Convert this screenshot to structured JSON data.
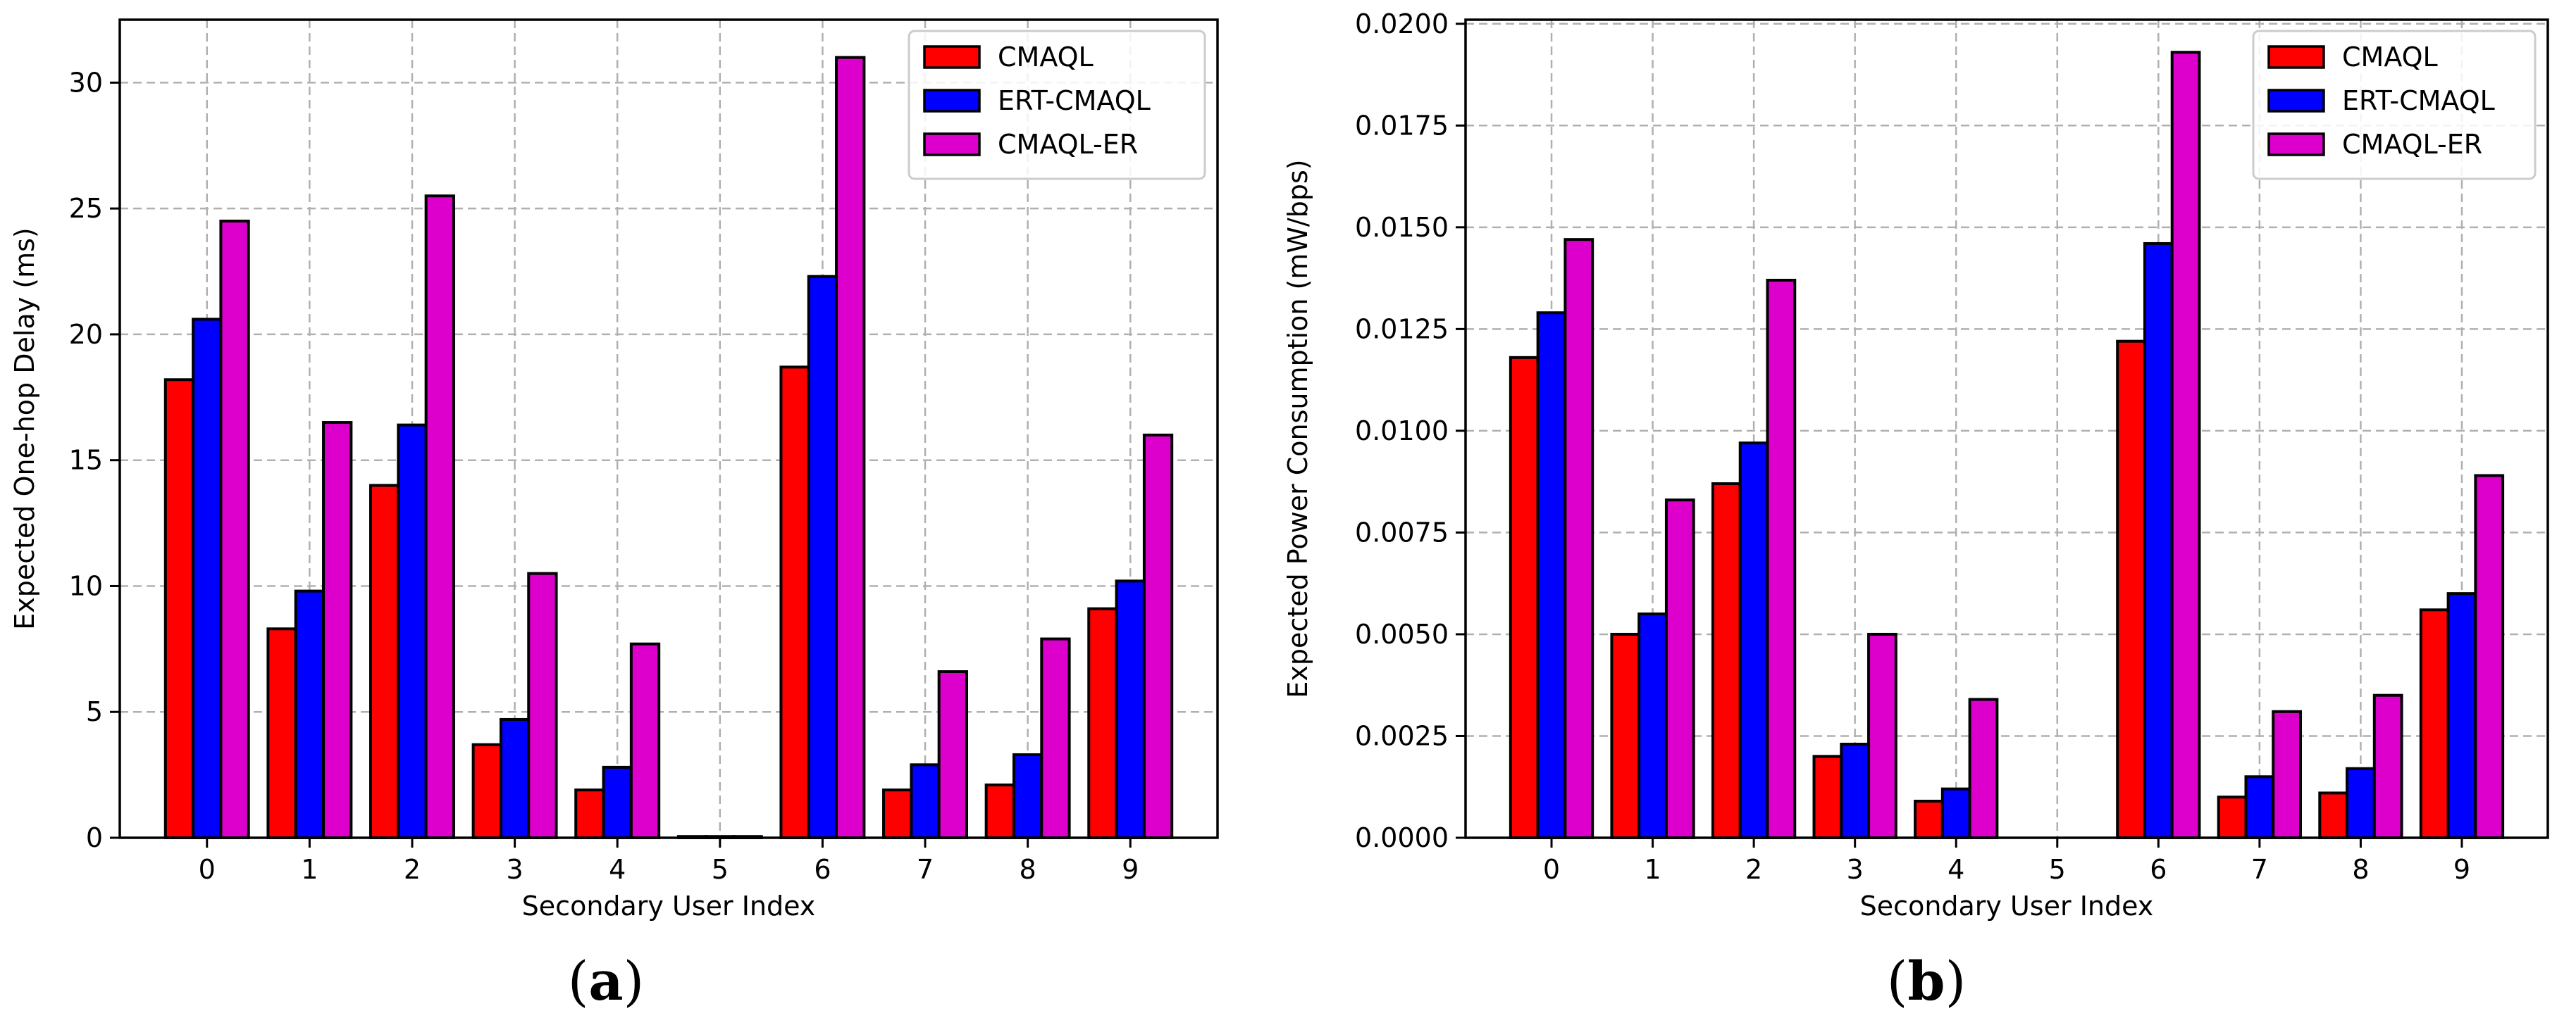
{
  "chart_data": [
    {
      "type": "bar",
      "panel": "a",
      "caption": {
        "open": "(",
        "letter": "a",
        "close": ")"
      },
      "title": "",
      "xlabel": "Secondary User Index",
      "ylabel": "Expected One-hop Delay (ms)",
      "categories": [
        "0",
        "1",
        "2",
        "3",
        "4",
        "5",
        "6",
        "7",
        "8",
        "9"
      ],
      "ylim": [
        0,
        32.5
      ],
      "yticks": [
        0,
        5,
        10,
        15,
        20,
        25,
        30
      ],
      "ytick_labels": [
        "0",
        "5",
        "10",
        "15",
        "20",
        "25",
        "30"
      ],
      "grid": true,
      "legend_position": "top-right",
      "series": [
        {
          "name": "CMAQL",
          "color": "#ff0000",
          "values": [
            18.2,
            8.3,
            14.0,
            3.7,
            1.9,
            0.05,
            18.7,
            1.9,
            2.1,
            9.1
          ]
        },
        {
          "name": "ERT-CMAQL",
          "color": "#0000ff",
          "values": [
            20.6,
            9.8,
            16.4,
            4.7,
            2.8,
            0.05,
            22.3,
            2.9,
            3.3,
            10.2
          ]
        },
        {
          "name": "CMAQL-ER",
          "color": "#dd00cc",
          "values": [
            24.5,
            16.5,
            25.5,
            10.5,
            7.7,
            0.05,
            31.0,
            6.6,
            7.9,
            16.0
          ]
        }
      ]
    },
    {
      "type": "bar",
      "panel": "b",
      "caption": {
        "open": "(",
        "letter": "b",
        "close": ")"
      },
      "title": "",
      "xlabel": "Secondary User Index",
      "ylabel": "Expected Power Consumption (mW/bps)",
      "categories": [
        "0",
        "1",
        "2",
        "3",
        "4",
        "5",
        "6",
        "7",
        "8",
        "9"
      ],
      "ylim": [
        0,
        0.0201
      ],
      "yticks": [
        0,
        0.0025,
        0.005,
        0.0075,
        0.01,
        0.0125,
        0.015,
        0.0175,
        0.02
      ],
      "ytick_labels": [
        "0.0000",
        "0.0025",
        "0.0050",
        "0.0075",
        "0.0100",
        "0.0125",
        "0.0150",
        "0.0175",
        "0.0200"
      ],
      "grid": true,
      "legend_position": "top-right",
      "series": [
        {
          "name": "CMAQL",
          "color": "#ff0000",
          "values": [
            0.0118,
            0.005,
            0.0087,
            0.002,
            0.0009,
            0.0,
            0.0122,
            0.001,
            0.0011,
            0.0056
          ]
        },
        {
          "name": "ERT-CMAQL",
          "color": "#0000ff",
          "values": [
            0.0129,
            0.0055,
            0.0097,
            0.0023,
            0.0012,
            0.0,
            0.0146,
            0.0015,
            0.0017,
            0.006
          ]
        },
        {
          "name": "CMAQL-ER",
          "color": "#dd00cc",
          "values": [
            0.0147,
            0.0083,
            0.0137,
            0.005,
            0.0034,
            0.0,
            0.0193,
            0.0031,
            0.0035,
            0.0089
          ]
        }
      ]
    }
  ]
}
